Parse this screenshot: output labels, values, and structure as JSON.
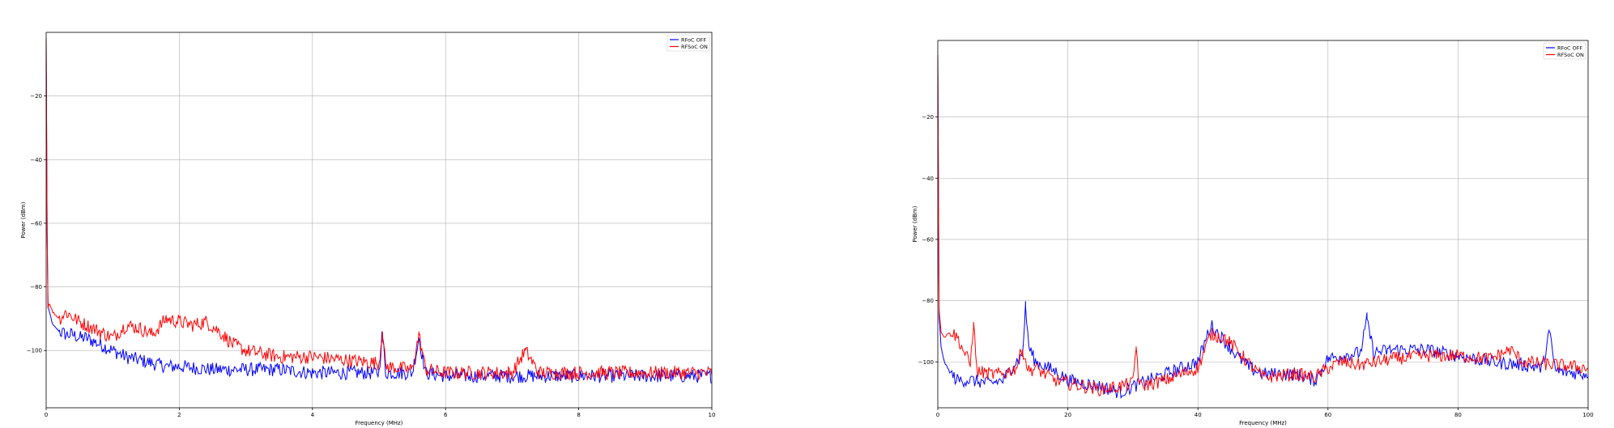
{
  "chart_data": [
    {
      "type": "line",
      "title": "",
      "xlabel": "Frequency (MHz)",
      "ylabel": "Power (dBm)",
      "xlim": [
        0,
        10
      ],
      "ylim": [
        -118,
        0
      ],
      "xticks": [
        0,
        2,
        4,
        6,
        8,
        10
      ],
      "yticks": [
        -20,
        -40,
        -60,
        -80,
        -100
      ],
      "grid": true,
      "legend_position": "top-right",
      "series": [
        {
          "name": "RFoC OFF",
          "color": "#0000ff",
          "x": [
            0,
            0.02,
            0.05,
            0.1,
            0.2,
            0.3,
            0.4,
            0.5,
            0.6,
            0.7,
            0.8,
            0.9,
            1.0,
            1.2,
            1.4,
            1.6,
            1.8,
            2.0,
            2.5,
            3.0,
            3.5,
            4.0,
            4.5,
            5.0,
            5.05,
            5.1,
            5.5,
            5.6,
            5.7,
            6.0,
            6.5,
            7.0,
            7.5,
            8.0,
            8.5,
            9.0,
            9.5,
            10.0
          ],
          "y": [
            -2,
            -86,
            -88,
            -92,
            -94,
            -95,
            -95,
            -96,
            -96,
            -97,
            -98,
            -99,
            -100,
            -102,
            -103,
            -104,
            -105,
            -105,
            -106,
            -106,
            -106,
            -107,
            -107,
            -107,
            -94,
            -107,
            -107,
            -96,
            -107,
            -108,
            -108,
            -108,
            -108,
            -108,
            -108,
            -108,
            -108,
            -108
          ]
        },
        {
          "name": "RFSoC ON",
          "color": "#ff0000",
          "x": [
            0,
            0.02,
            0.05,
            0.1,
            0.2,
            0.3,
            0.5,
            0.7,
            0.9,
            1.0,
            1.2,
            1.4,
            1.6,
            1.8,
            2.0,
            2.2,
            2.4,
            2.6,
            2.8,
            3.0,
            3.5,
            4.0,
            4.5,
            5.0,
            5.05,
            5.1,
            5.5,
            5.6,
            5.7,
            6.0,
            6.5,
            7.0,
            7.2,
            7.4,
            8.0,
            8.5,
            9.0,
            9.5,
            10.0
          ],
          "y": [
            -2,
            -87,
            -85,
            -88,
            -90,
            -88,
            -91,
            -93,
            -95,
            -96,
            -92,
            -93,
            -95,
            -90,
            -91,
            -92,
            -91,
            -94,
            -98,
            -100,
            -102,
            -102,
            -103,
            -104,
            -94,
            -105,
            -106,
            -95,
            -106,
            -107,
            -107,
            -107,
            -100,
            -107,
            -107,
            -107,
            -107,
            -107,
            -107
          ]
        }
      ]
    },
    {
      "type": "line",
      "title": "",
      "xlabel": "Frequency (MHz)",
      "ylabel": "Power (dBm)",
      "xlim": [
        0,
        100
      ],
      "ylim": [
        -115,
        5
      ],
      "xticks": [
        0,
        20,
        40,
        60,
        80,
        100
      ],
      "yticks": [
        -20,
        -40,
        -60,
        -80,
        -100
      ],
      "grid": true,
      "legend_position": "top-right",
      "series": [
        {
          "name": "RFoC OFF",
          "color": "#0000ff",
          "x": [
            0,
            0.2,
            0.5,
            1,
            2,
            3,
            5,
            8,
            10,
            12,
            13,
            13.5,
            14,
            15,
            18,
            20,
            25,
            28,
            30,
            35,
            40,
            42,
            44,
            46,
            48,
            50,
            55,
            58,
            60,
            62,
            65,
            66,
            67,
            70,
            75,
            80,
            85,
            90,
            93,
            94,
            95,
            100
          ],
          "y": [
            0,
            -85,
            -95,
            -100,
            -104,
            -106,
            -106,
            -107,
            -106,
            -100,
            -98,
            -82,
            -95,
            -100,
            -103,
            -106,
            -108,
            -110,
            -108,
            -104,
            -100,
            -88,
            -93,
            -98,
            -102,
            -104,
            -104,
            -106,
            -99,
            -98,
            -97,
            -86,
            -97,
            -96,
            -96,
            -98,
            -100,
            -101,
            -102,
            -90,
            -103,
            -104
          ]
        },
        {
          "name": "RFSoC ON",
          "color": "#ff0000",
          "x": [
            0,
            0.2,
            0.5,
            1,
            2,
            3,
            5,
            5.5,
            6,
            8,
            10,
            12,
            13,
            14,
            15,
            18,
            20,
            25,
            28,
            30,
            30.5,
            31,
            35,
            40,
            42,
            44,
            46,
            48,
            50,
            55,
            58,
            60,
            62,
            65,
            70,
            75,
            80,
            85,
            88,
            90,
            95,
            100
          ],
          "y": [
            0,
            -83,
            -90,
            -92,
            -90,
            -92,
            -101,
            -87,
            -103,
            -104,
            -104,
            -102,
            -96,
            -103,
            -102,
            -106,
            -107,
            -109,
            -108,
            -107,
            -95,
            -108,
            -106,
            -102,
            -91,
            -92,
            -96,
            -101,
            -105,
            -104,
            -105,
            -102,
            -100,
            -101,
            -99,
            -98,
            -98,
            -99,
            -96,
            -100,
            -101,
            -102
          ]
        }
      ]
    }
  ]
}
